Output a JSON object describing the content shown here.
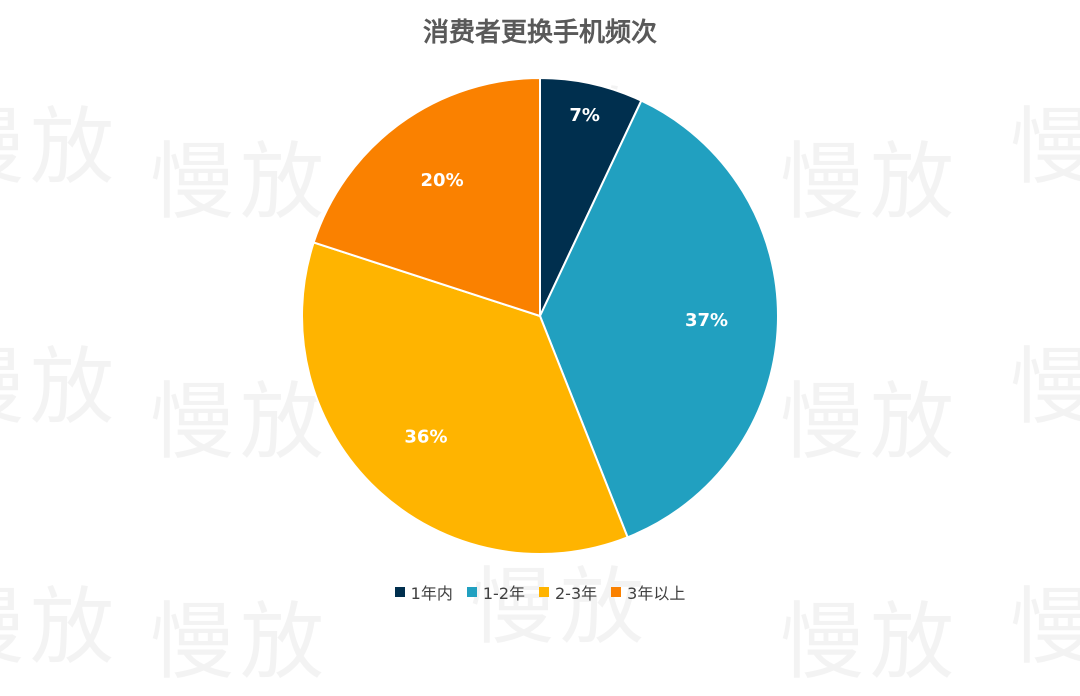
{
  "chart_data": {
    "type": "pie",
    "title": "消费者更换手机频次",
    "categories": [
      "1年内",
      "1-2年",
      "2-3年",
      "3年以上"
    ],
    "values": [
      7,
      37,
      36,
      20
    ],
    "value_labels": [
      "7%",
      "37%",
      "36%",
      "20%"
    ],
    "colors": [
      "#002f4e",
      "#21a0c0",
      "#ffb400",
      "#fa8100"
    ],
    "legend": "bottom"
  },
  "watermark": {
    "text": "慢放"
  }
}
